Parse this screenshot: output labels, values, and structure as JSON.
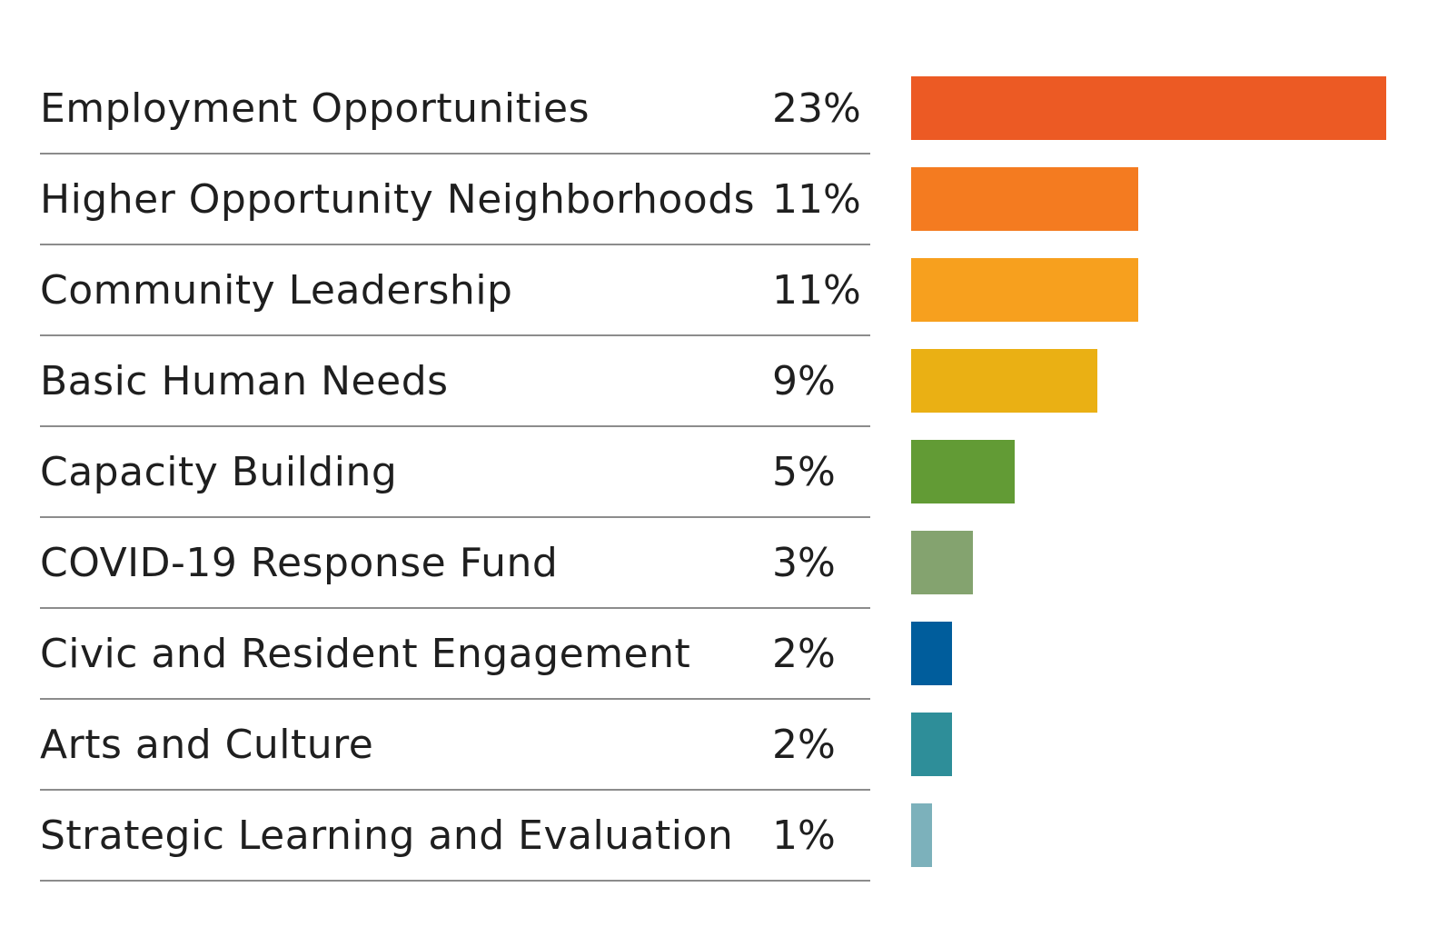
{
  "chart_data": {
    "type": "bar",
    "orientation": "horizontal",
    "categories": [
      "Employment Opportunities",
      "Higher Opportunity Neighborhoods",
      "Community Leadership",
      "Basic Human Needs",
      "Capacity Building",
      "COVID-19 Response Fund",
      "Civic and Resident Engagement",
      "Arts and Culture",
      "Strategic Learning and Evaluation"
    ],
    "values": [
      23,
      11,
      11,
      9,
      5,
      3,
      2,
      2,
      1
    ],
    "value_labels": [
      "23%",
      "11%",
      "11%",
      "9%",
      "5%",
      "3%",
      "2%",
      "2%",
      "1%"
    ],
    "colors": [
      "#ec5a24",
      "#f47b20",
      "#f7a01e",
      "#eab014",
      "#629b35",
      "#84a36f",
      "#005d9c",
      "#2e8e99",
      "#7cb1bb"
    ],
    "xlim": [
      0,
      23
    ],
    "grid": false,
    "legend": "none"
  }
}
